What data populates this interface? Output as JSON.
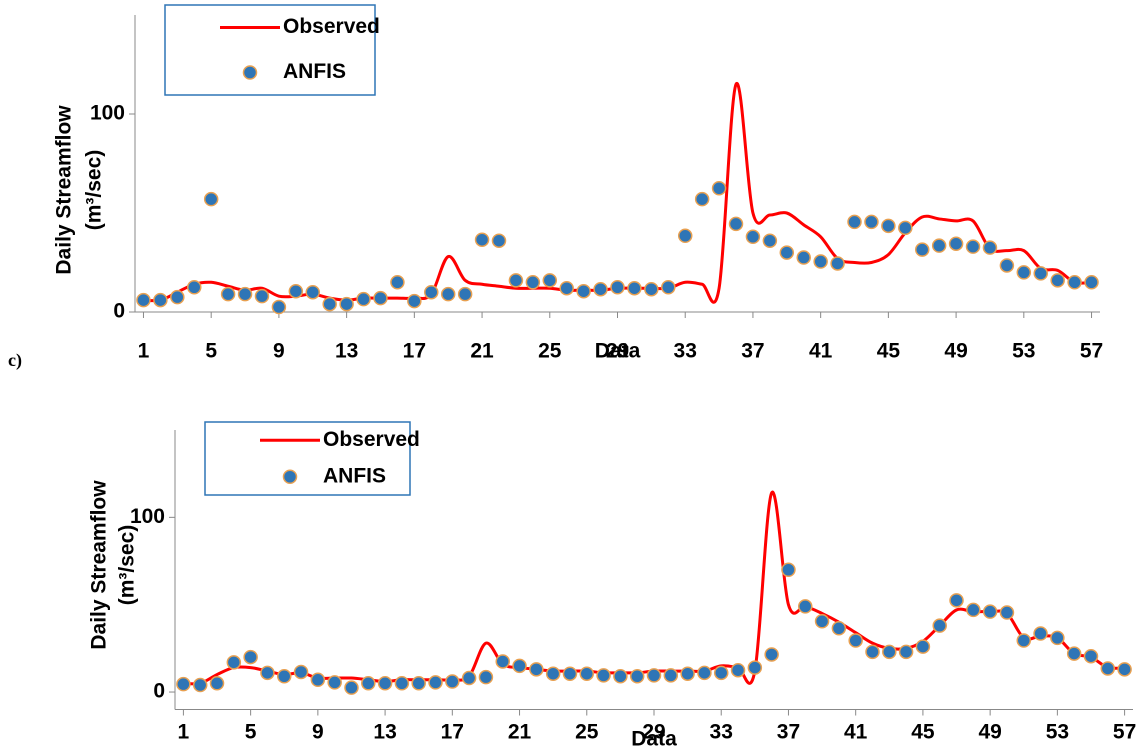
{
  "chart_data": [
    {
      "type": "line",
      "x_label": "Data",
      "y_label": [
        "Daily Streamflow",
        "(m³/sec)"
      ],
      "x": [
        1,
        2,
        3,
        4,
        5,
        6,
        7,
        8,
        9,
        10,
        11,
        12,
        13,
        14,
        15,
        16,
        17,
        18,
        19,
        20,
        21,
        22,
        23,
        24,
        25,
        26,
        27,
        28,
        29,
        30,
        31,
        32,
        33,
        34,
        35,
        36,
        37,
        38,
        39,
        40,
        41,
        42,
        43,
        44,
        45,
        46,
        47,
        48,
        49,
        50,
        51,
        52,
        53,
        54,
        55,
        56,
        57
      ],
      "xlim": [
        0.5,
        57.5
      ],
      "xticks": [
        1,
        5,
        9,
        13,
        17,
        21,
        25,
        29,
        33,
        37,
        41,
        45,
        49,
        53,
        57
      ],
      "ylim": [
        0,
        150
      ],
      "yticks": [
        0,
        100
      ],
      "series": [
        {
          "name": "Observed",
          "color": "#ff0000",
          "style": "line",
          "values": [
            6,
            6,
            10,
            14,
            15,
            13,
            11,
            12,
            8,
            8,
            9,
            7,
            6,
            7,
            7,
            7,
            7,
            9,
            28,
            16,
            14,
            13,
            12,
            12,
            12,
            11,
            11,
            11,
            12,
            12,
            12,
            12,
            15,
            14,
            12,
            115,
            50,
            49,
            50,
            44,
            38,
            27,
            25,
            25,
            29,
            40,
            48,
            47,
            46,
            46,
            32,
            31,
            31,
            22,
            21,
            15,
            15
          ]
        },
        {
          "name": "ANFIS",
          "color": "#2e75b6",
          "style": "marker",
          "values": [
            6,
            6,
            7.5,
            12.5,
            57,
            9,
            9,
            8,
            2.5,
            10.5,
            10,
            4,
            4,
            6.5,
            7,
            15,
            5.5,
            10,
            9,
            9,
            36.5,
            36,
            16,
            15,
            16,
            12,
            10.5,
            11.5,
            12.5,
            12,
            11.5,
            12.5,
            38.5,
            57,
            62.5,
            44.5,
            38,
            36,
            30,
            27.5,
            25.5,
            24.5,
            45.5,
            45.5,
            43.5,
            42.5,
            31.5,
            33.5,
            34.5,
            33,
            32.5,
            23.5,
            20,
            19.5,
            16,
            15,
            15
          ]
        }
      ]
    },
    {
      "type": "line",
      "panel_label": "c)",
      "x_label": "Data",
      "y_label": [
        "Daily Streamflow",
        "(m³/sec)"
      ],
      "x": [
        1,
        2,
        3,
        4,
        5,
        6,
        7,
        8,
        9,
        10,
        11,
        12,
        13,
        14,
        15,
        16,
        17,
        18,
        19,
        20,
        21,
        22,
        23,
        24,
        25,
        26,
        27,
        28,
        29,
        30,
        31,
        32,
        33,
        34,
        35,
        36,
        37,
        38,
        39,
        40,
        41,
        42,
        43,
        44,
        45,
        46,
        47,
        48,
        49,
        50,
        51,
        52,
        53,
        54,
        55,
        56,
        57
      ],
      "xlim": [
        0.5,
        57.5
      ],
      "xticks": [
        1,
        5,
        9,
        13,
        17,
        21,
        25,
        29,
        33,
        37,
        41,
        45,
        49,
        53,
        57
      ],
      "ylim": [
        -10,
        150
      ],
      "yticks": [
        0,
        100
      ],
      "series": [
        {
          "name": "Observed",
          "color": "#ff0000",
          "style": "line",
          "values": [
            5,
            5,
            10,
            14,
            14,
            12,
            10,
            11,
            8,
            8,
            8,
            7,
            6,
            7,
            7,
            7,
            7,
            9,
            28,
            16,
            14,
            13,
            12,
            12,
            12,
            11,
            11,
            11,
            12,
            12,
            12,
            12,
            15,
            14,
            12,
            114,
            50,
            49,
            45,
            40,
            34,
            28,
            25,
            25,
            29,
            38,
            47,
            46,
            46,
            45,
            31,
            32,
            31,
            22,
            20,
            14,
            14
          ]
        },
        {
          "name": "ANFIS",
          "color": "#2e75b6",
          "style": "marker",
          "values": [
            4.5,
            4,
            5,
            17,
            20,
            11,
            9,
            11.5,
            7,
            5.5,
            2.5,
            5,
            5,
            5,
            5,
            5.5,
            6,
            8,
            8.5,
            17.5,
            15,
            13,
            10.5,
            10.5,
            10.5,
            9.5,
            9,
            9,
            9.5,
            9.5,
            10.5,
            11,
            11,
            12.5,
            14,
            21.5,
            70,
            49,
            40.5,
            36.5,
            29.5,
            23,
            23,
            23,
            26,
            38,
            52.5,
            47,
            46,
            45.5,
            29.5,
            33.5,
            31,
            22,
            20.5,
            13.5,
            13
          ]
        }
      ]
    }
  ]
}
